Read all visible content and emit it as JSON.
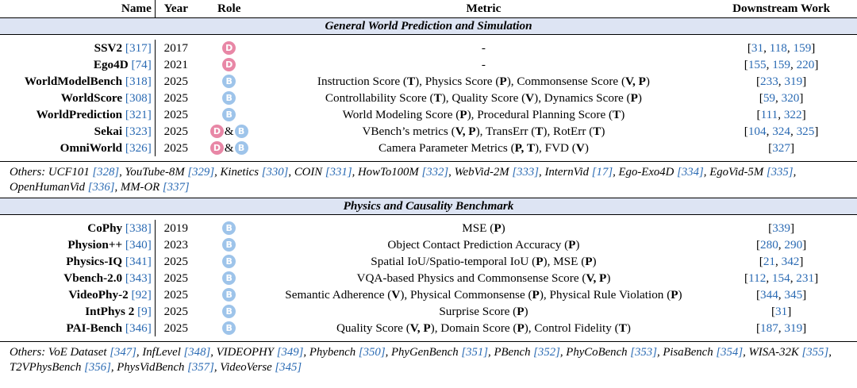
{
  "header": {
    "name": "Name",
    "year": "Year",
    "role": "Role",
    "metric": "Metric",
    "downstream": "Downstream Work"
  },
  "badge_letters": {
    "d": "D",
    "b": "B"
  },
  "amp": "&",
  "sections": [
    {
      "title": "General World Prediction and Simulation",
      "rows": [
        {
          "name": "SSV2",
          "cite": "[317]",
          "year": "2017",
          "roles": [
            "d"
          ],
          "metric": [
            {
              "t": "-"
            }
          ],
          "down": [
            "31",
            "118",
            "159"
          ]
        },
        {
          "name": "Ego4D",
          "cite": "[74]",
          "year": "2021",
          "roles": [
            "d"
          ],
          "metric": [
            {
              "t": "-"
            }
          ],
          "down": [
            "155",
            "159",
            "220"
          ]
        },
        {
          "name": "WorldModelBench",
          "cite": "[318]",
          "year": "2025",
          "roles": [
            "b"
          ],
          "metric": [
            {
              "t": "Instruction Score ("
            },
            {
              "t": "T",
              "b": true
            },
            {
              "t": "), Physics Score ("
            },
            {
              "t": "P",
              "b": true
            },
            {
              "t": "), Commonsense Score ("
            },
            {
              "t": "V, P",
              "b": true
            },
            {
              "t": ")"
            }
          ],
          "down": [
            "233",
            "319"
          ]
        },
        {
          "name": "WorldScore",
          "cite": "[308]",
          "year": "2025",
          "roles": [
            "b"
          ],
          "metric": [
            {
              "t": "Controllability Score ("
            },
            {
              "t": "T",
              "b": true
            },
            {
              "t": "), Quality Score ("
            },
            {
              "t": "V",
              "b": true
            },
            {
              "t": "), Dynamics Score ("
            },
            {
              "t": "P",
              "b": true
            },
            {
              "t": ")"
            }
          ],
          "down": [
            "59",
            "320"
          ]
        },
        {
          "name": "WorldPrediction",
          "cite": "[321]",
          "year": "2025",
          "roles": [
            "b"
          ],
          "metric": [
            {
              "t": "World Modeling Score ("
            },
            {
              "t": "P",
              "b": true
            },
            {
              "t": "), Procedural Planning Score ("
            },
            {
              "t": "T",
              "b": true
            },
            {
              "t": ")"
            }
          ],
          "down": [
            "111",
            "322"
          ]
        },
        {
          "name": "Sekai",
          "cite": "[323]",
          "year": "2025",
          "roles": [
            "d",
            "b"
          ],
          "metric": [
            {
              "t": "VBench’s metrics ("
            },
            {
              "t": "V, P",
              "b": true
            },
            {
              "t": "), TransErr ("
            },
            {
              "t": "T",
              "b": true
            },
            {
              "t": "), RotErr ("
            },
            {
              "t": "T",
              "b": true
            },
            {
              "t": ")"
            }
          ],
          "down": [
            "104",
            "324",
            "325"
          ]
        },
        {
          "name": "OmniWorld",
          "cite": "[326]",
          "year": "2025",
          "roles": [
            "d",
            "b"
          ],
          "metric": [
            {
              "t": "Camera Parameter Metrics ("
            },
            {
              "t": "P, T",
              "b": true
            },
            {
              "t": "), FVD ("
            },
            {
              "t": "V",
              "b": true
            },
            {
              "t": ")"
            }
          ],
          "down": [
            "327"
          ]
        }
      ],
      "others_label": "Others:",
      "others": [
        {
          "n": "UCF101",
          "c": "[328]"
        },
        {
          "n": "YouTube-8M",
          "c": "[329]"
        },
        {
          "n": "Kinetics",
          "c": "[330]"
        },
        {
          "n": "COIN",
          "c": "[331]"
        },
        {
          "n": "HowTo100M",
          "c": "[332]"
        },
        {
          "n": "WebVid-2M",
          "c": "[333]"
        },
        {
          "n": "InternVid",
          "c": "[17]"
        },
        {
          "n": "Ego-Exo4D",
          "c": "[334]"
        },
        {
          "n": "EgoVid-5M",
          "c": "[335]"
        },
        {
          "n": "OpenHumanVid",
          "c": "[336]"
        },
        {
          "n": "MM-OR",
          "c": "[337]"
        }
      ]
    },
    {
      "title": "Physics and Causality Benchmark",
      "rows": [
        {
          "name": "CoPhy",
          "cite": "[338]",
          "year": "2019",
          "roles": [
            "b"
          ],
          "metric": [
            {
              "t": "MSE ("
            },
            {
              "t": "P",
              "b": true
            },
            {
              "t": ")"
            }
          ],
          "down": [
            "339"
          ]
        },
        {
          "name": "Physion++",
          "cite": "[340]",
          "year": "2023",
          "roles": [
            "b"
          ],
          "metric": [
            {
              "t": "Object Contact Prediction Accuracy ("
            },
            {
              "t": "P",
              "b": true
            },
            {
              "t": ")"
            }
          ],
          "down": [
            "280",
            "290"
          ]
        },
        {
          "name": "Physics-IQ",
          "cite": "[341]",
          "year": "2025",
          "roles": [
            "b"
          ],
          "metric": [
            {
              "t": "Spatial IoU/Spatio-temporal IoU ("
            },
            {
              "t": "P",
              "b": true
            },
            {
              "t": "), MSE ("
            },
            {
              "t": "P",
              "b": true
            },
            {
              "t": ")"
            }
          ],
          "down": [
            "21",
            "342"
          ]
        },
        {
          "name": "Vbench-2.0",
          "cite": "[343]",
          "year": "2025",
          "roles": [
            "b"
          ],
          "metric": [
            {
              "t": "VQA-based Physics and Commonsense Score ("
            },
            {
              "t": "V, P",
              "b": true
            },
            {
              "t": ")"
            }
          ],
          "down": [
            "112",
            "154",
            "231"
          ]
        },
        {
          "name": "VideoPhy-2",
          "cite": "[92]",
          "year": "2025",
          "roles": [
            "b"
          ],
          "metric": [
            {
              "t": "Semantic Adherence ("
            },
            {
              "t": "V",
              "b": true
            },
            {
              "t": "), Physical Commonsense ("
            },
            {
              "t": "P",
              "b": true
            },
            {
              "t": "), Physical Rule Violation ("
            },
            {
              "t": "P",
              "b": true
            },
            {
              "t": ")"
            }
          ],
          "down": [
            "344",
            "345"
          ]
        },
        {
          "name": "IntPhys 2",
          "cite": "[9]",
          "year": "2025",
          "roles": [
            "b"
          ],
          "metric": [
            {
              "t": "Surprise Score ("
            },
            {
              "t": "P",
              "b": true
            },
            {
              "t": ")"
            }
          ],
          "down": [
            "31"
          ]
        },
        {
          "name": "PAI-Bench",
          "cite": "[346]",
          "year": "2025",
          "roles": [
            "b"
          ],
          "metric": [
            {
              "t": "Quality Score ("
            },
            {
              "t": "V, P",
              "b": true
            },
            {
              "t": "), Domain Score ("
            },
            {
              "t": "P",
              "b": true
            },
            {
              "t": "), Control Fidelity ("
            },
            {
              "t": "T",
              "b": true
            },
            {
              "t": ")"
            }
          ],
          "down": [
            "187",
            "319"
          ]
        }
      ],
      "others_label": "Others:",
      "others": [
        {
          "n": "VoE Dataset",
          "c": "[347]"
        },
        {
          "n": "InfLevel",
          "c": "[348]"
        },
        {
          "n": "VIDEOPHY",
          "c": "[349]"
        },
        {
          "n": "Phybench",
          "c": "[350]"
        },
        {
          "n": "PhyGenBench",
          "c": "[351]"
        },
        {
          "n": "PBench",
          "c": "[352]"
        },
        {
          "n": "PhyCoBench",
          "c": "[353]"
        },
        {
          "n": "PisaBench",
          "c": "[354]"
        },
        {
          "n": "WISA-32K",
          "c": "[355]"
        },
        {
          "n": "T2VPhysBench",
          "c": "[356]"
        },
        {
          "n": "PhysVidBench",
          "c": "[357]"
        },
        {
          "n": "VideoVerse",
          "c": "[345]"
        }
      ]
    }
  ]
}
